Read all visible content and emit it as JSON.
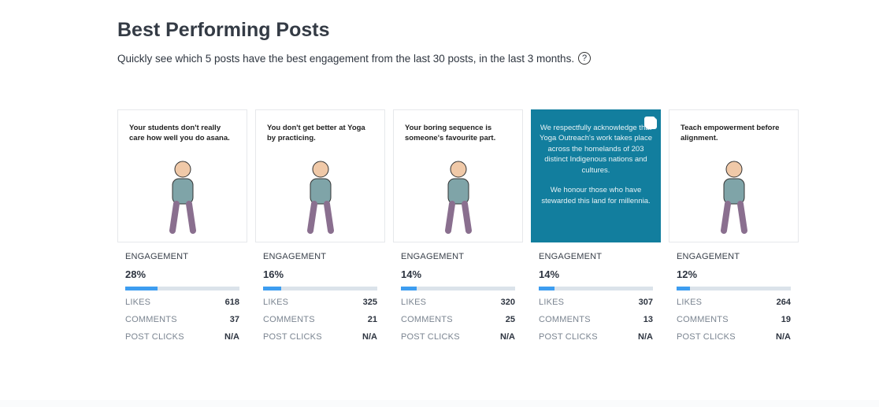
{
  "header": {
    "title": "Best Performing Posts",
    "subtitle": "Quickly see which 5 posts have the best engagement from the last 30 posts, in the last 3 months.",
    "help_icon": "?"
  },
  "labels": {
    "engagement": "ENGAGEMENT",
    "likes": "LIKES",
    "comments": "COMMENTS",
    "post_clicks": "POST CLICKS"
  },
  "colors": {
    "bar_fill": "#3d9df0",
    "bar_track": "#dbe3ea",
    "teal_post": "#127e9e"
  },
  "posts": [
    {
      "caption": "Your students don't really care how well you do asana.",
      "engagement": "28%",
      "engagement_value": 28,
      "likes": "618",
      "comments": "37",
      "post_clicks": "N/A"
    },
    {
      "caption": "You don't get better at Yoga by practicing.",
      "engagement": "16%",
      "engagement_value": 16,
      "likes": "325",
      "comments": "21",
      "post_clicks": "N/A"
    },
    {
      "caption": "Your boring sequence is someone's favourite part.",
      "engagement": "14%",
      "engagement_value": 14,
      "likes": "320",
      "comments": "25",
      "post_clicks": "N/A"
    },
    {
      "caption": "We respectfully acknowledge that Yoga Outreach's work takes place across the homelands of 203 distinct Indigenous nations and cultures.",
      "caption2": "We honour those who have stewarded this land for millennia.",
      "engagement": "14%",
      "engagement_value": 14,
      "likes": "307",
      "comments": "13",
      "post_clicks": "N/A"
    },
    {
      "caption": "Teach empowerment before alignment.",
      "engagement": "12%",
      "engagement_value": 12,
      "likes": "264",
      "comments": "19",
      "post_clicks": "N/A"
    }
  ]
}
